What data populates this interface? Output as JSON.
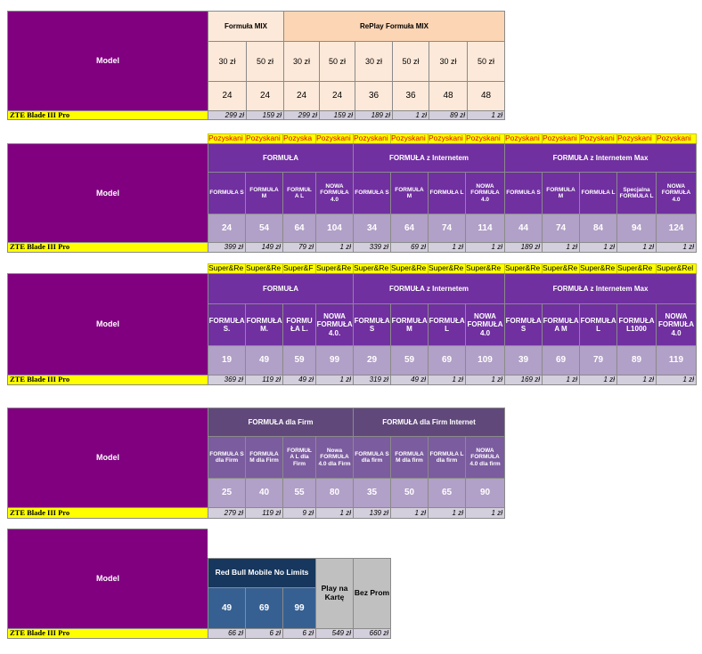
{
  "sections": [
    {
      "model": "Model",
      "groups": [
        "Formuła MIX",
        "RePlay Formuła MIX"
      ],
      "plans": [
        "30 zł",
        "50 zł",
        "30 zł",
        "50 zł",
        "30 zł",
        "50 zł",
        "30 zł",
        "50 zł"
      ],
      "values": [
        24,
        24,
        24,
        24,
        36,
        36,
        48,
        48
      ],
      "row_label": "ZTE Blade III Pro",
      "prices": [
        "299 zł",
        "159 zł",
        "299 zł",
        "159 zł",
        "189 zł",
        "1 zł",
        "89 zł",
        "1 zł"
      ]
    },
    {
      "model": "Model",
      "banner": [
        "Pozyskani",
        "Pozyskani",
        "Pozyska",
        "Pozyskani",
        "Pozyskani",
        "Pozyskani",
        "Pozyskani",
        "Pozyskani",
        "Pozyskani",
        "Pozyskani",
        "Pozyskani",
        "Pozyskani",
        "Pozyskani"
      ],
      "groups": [
        "FORMUŁA",
        "FORMUŁA z Internetem",
        "FORMUŁA z Internetem Max"
      ],
      "plans": [
        "FORMUŁA S",
        "FORMUŁA M",
        "FORMUŁ A L",
        "NOWA FORMUŁA 4.0",
        "FORMUŁA S",
        "FORMUŁA M",
        "FORMUŁA L",
        "NOWA FORMUŁA 4.0",
        "FORMUŁA S",
        "FORMUŁA M",
        "FORMUŁA L",
        "Specjalna FORMUŁA L",
        "NOWA FORMUŁA 4.0"
      ],
      "values": [
        24,
        54,
        64,
        104,
        34,
        64,
        74,
        114,
        44,
        74,
        84,
        94,
        124
      ],
      "row_label": "ZTE Blade III Pro",
      "prices": [
        "399 zł",
        "149 zł",
        "79 zł",
        "1 zł",
        "339 zł",
        "69 zł",
        "1 zł",
        "1 zł",
        "189 zł",
        "1 zł",
        "1 zł",
        "1 zł",
        "1 zł"
      ]
    },
    {
      "model": "Model",
      "banner": [
        "Super&Re",
        "Super&Re",
        "Super&F",
        "Super&Re",
        "Super&Re",
        "Super&Re",
        "Super&Re",
        "Super&Re",
        "Super&Re",
        "Super&Re",
        "Super&Re",
        "Super&Re",
        "Super&Rel"
      ],
      "groups": [
        "FORMUŁA",
        "FORMUŁA z Internetem",
        "FORMUŁA z Internetem Max"
      ],
      "plans": [
        "FORMUŁA S.",
        "FORMUŁA M.",
        "FORMU ŁA L.",
        "NOWA FORMUŁA 4.0.",
        "FORMUŁA S",
        "FORMUŁA M",
        "FORMUŁA L",
        "NOWA FORMUŁA 4.0",
        "FORMUŁA S",
        "FORMUŁA A M",
        "FORMUŁA L",
        "FORMUŁA L1000",
        "NOWA FORMUŁA 4.0"
      ],
      "values": [
        19,
        49,
        59,
        99,
        29,
        59,
        69,
        109,
        39,
        69,
        79,
        89,
        119
      ],
      "row_label": "ZTE Blade III Pro",
      "prices": [
        "369 zł",
        "119 zł",
        "49 zł",
        "1 zł",
        "319 zł",
        "49 zł",
        "1 zł",
        "1 zł",
        "169 zł",
        "1 zł",
        "1 zł",
        "1 zł",
        "1 zł"
      ]
    },
    {
      "model": "Model",
      "groups": [
        "FORMUŁA dla Firm",
        "FORMUŁA dla Firm Internet"
      ],
      "plans": [
        "FORMUŁA S dla Firm",
        "FORMUŁA M dla Firm",
        "FORMUŁ A L dla Firm",
        "Nowa FORMUŁA 4.0 dla Firm",
        "FORMUŁA S dla firm",
        "FORMUŁA M dla firm",
        "FORMUŁA L dla firm",
        "NOWA FORMUŁA 4.0 dla firm"
      ],
      "values": [
        25,
        40,
        55,
        80,
        35,
        50,
        65,
        90
      ],
      "row_label": "ZTE Blade III Pro",
      "prices": [
        "279 zł",
        "119 zł",
        "9 zł",
        "1 zł",
        "139 zł",
        "1 zł",
        "1 zł",
        "1 zł"
      ]
    },
    {
      "model": "Model",
      "groups": [
        "Red Bull Mobile No Limits",
        "Play na Kartę",
        "Bez Prom"
      ],
      "values": [
        49,
        69,
        99
      ],
      "row_label": "ZTE Blade III Pro",
      "prices": [
        "66 zł",
        "6 zł",
        "6 zł",
        "549 zł",
        "660 zł"
      ]
    }
  ]
}
